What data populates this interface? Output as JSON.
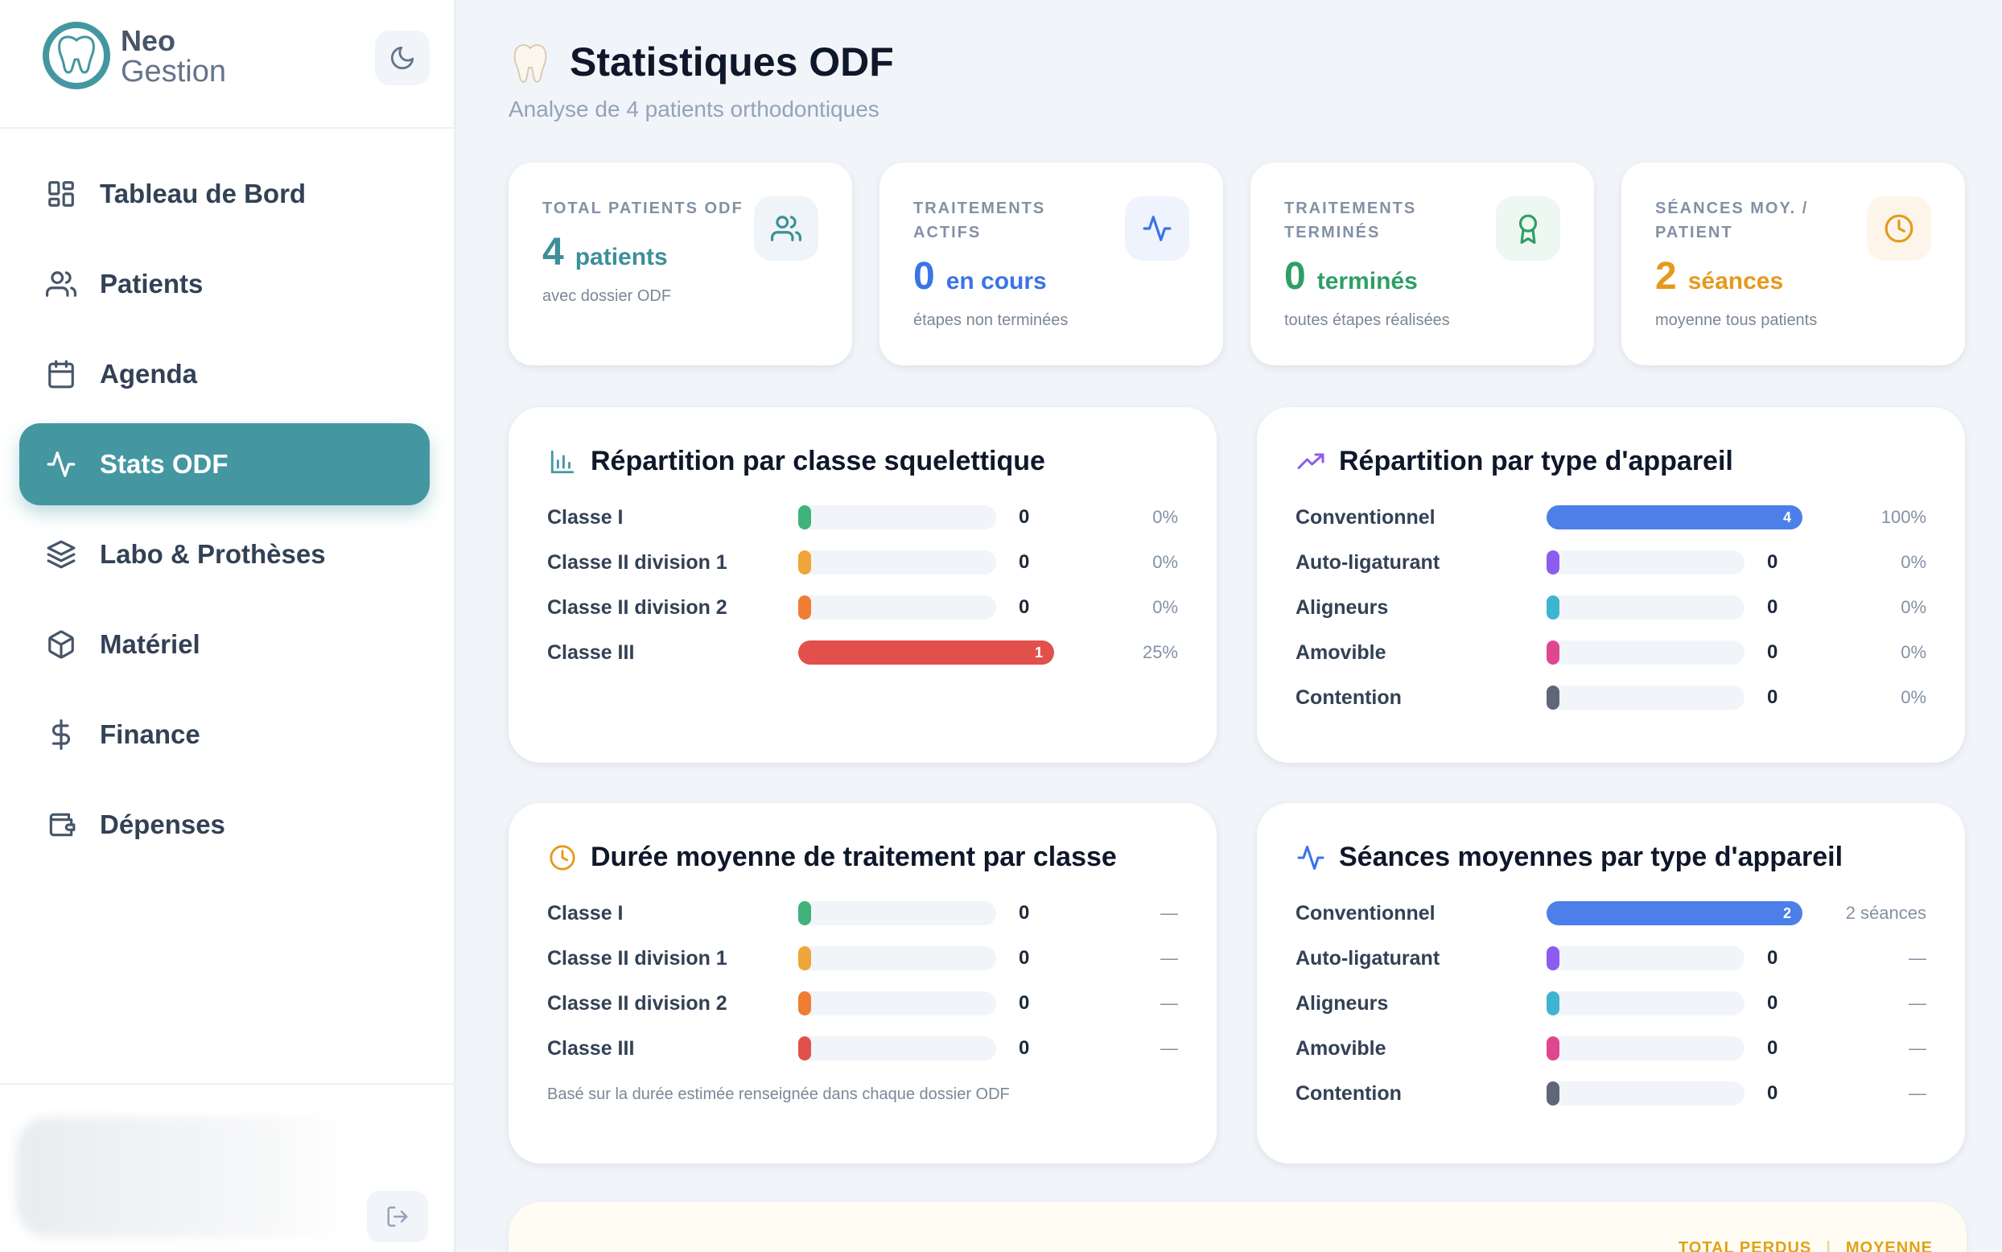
{
  "brand": {
    "name_top": "Neo",
    "name_bottom": "Gestion"
  },
  "sidebar": {
    "items": [
      {
        "label": "Tableau de Bord",
        "icon": "dashboard-icon",
        "active": false
      },
      {
        "label": "Patients",
        "icon": "users-icon",
        "active": false
      },
      {
        "label": "Agenda",
        "icon": "calendar-icon",
        "active": false
      },
      {
        "label": "Stats ODF",
        "icon": "activity-icon",
        "active": true
      },
      {
        "label": "Labo & Prothèses",
        "icon": "layers-icon",
        "active": false
      },
      {
        "label": "Matériel",
        "icon": "package-icon",
        "active": false
      },
      {
        "label": "Finance",
        "icon": "dollar-icon",
        "active": false
      },
      {
        "label": "Dépenses",
        "icon": "wallet-icon",
        "active": false
      }
    ]
  },
  "header": {
    "title": "Statistiques ODF",
    "subtitle": "Analyse de 4 patients orthodontiques"
  },
  "kpis": [
    {
      "label": "TOTAL PATIENTS ODF",
      "value": "4",
      "unit": "patients",
      "note": "avec dossier ODF",
      "color": "#3d8f99",
      "icon_bg": "#eef4f7",
      "icon": "users-icon"
    },
    {
      "label": "TRAITEMENTS ACTIFS",
      "value": "0",
      "unit": "en cours",
      "note": "étapes non terminées",
      "color": "#3b73e8",
      "icon_bg": "#eef3fe",
      "icon": "activity-icon"
    },
    {
      "label": "TRAITEMENTS TERMINÉS",
      "value": "0",
      "unit": "terminés",
      "note": "toutes étapes réalisées",
      "color": "#2f9e66",
      "icon_bg": "#ecf8f1",
      "icon": "award-icon"
    },
    {
      "label": "SÉANCES MOY. / PATIENT",
      "value": "2",
      "unit": "séances",
      "note": "moyenne tous patients",
      "color": "#e59a1c",
      "icon_bg": "#fdf5e9",
      "icon": "clock-icon"
    }
  ],
  "panels": {
    "skeletal": {
      "title": "Répartition par classe squelettique",
      "rows": [
        {
          "label": "Classe I",
          "count": "0",
          "pct": "0%",
          "fraction": 0,
          "color": "#3fb37a",
          "bar_label": ""
        },
        {
          "label": "Classe II division 1",
          "count": "0",
          "pct": "0%",
          "fraction": 0,
          "color": "#f0a53a",
          "bar_label": ""
        },
        {
          "label": "Classe II division 2",
          "count": "0",
          "pct": "0%",
          "fraction": 0,
          "color": "#ef7d32",
          "bar_label": ""
        },
        {
          "label": "Classe III",
          "count": "",
          "pct": "25%",
          "fraction": 1,
          "color": "#e2504b",
          "bar_label": "1"
        }
      ]
    },
    "appliance": {
      "title": "Répartition par type d'appareil",
      "rows": [
        {
          "label": "Conventionnel",
          "count": "",
          "pct": "100%",
          "fraction": 1,
          "color": "#4c7fe9",
          "bar_label": "4"
        },
        {
          "label": "Auto-ligaturant",
          "count": "0",
          "pct": "0%",
          "fraction": 0,
          "color": "#8a5cf0",
          "bar_label": ""
        },
        {
          "label": "Aligneurs",
          "count": "0",
          "pct": "0%",
          "fraction": 0,
          "color": "#3db5d0",
          "bar_label": ""
        },
        {
          "label": "Amovible",
          "count": "0",
          "pct": "0%",
          "fraction": 0,
          "color": "#e0468f",
          "bar_label": ""
        },
        {
          "label": "Contention",
          "count": "0",
          "pct": "0%",
          "fraction": 0,
          "color": "#5d6778",
          "bar_label": ""
        }
      ]
    },
    "duration": {
      "title": "Durée moyenne de traitement par classe",
      "note": "Basé sur la durée estimée renseignée dans chaque dossier ODF",
      "rows": [
        {
          "label": "Classe I",
          "count": "0",
          "pct": "—",
          "fraction": 0,
          "color": "#3fb37a",
          "bar_label": ""
        },
        {
          "label": "Classe II division 1",
          "count": "0",
          "pct": "—",
          "fraction": 0,
          "color": "#f0a53a",
          "bar_label": ""
        },
        {
          "label": "Classe II division 2",
          "count": "0",
          "pct": "—",
          "fraction": 0,
          "color": "#ef7d32",
          "bar_label": ""
        },
        {
          "label": "Classe III",
          "count": "0",
          "pct": "—",
          "fraction": 0,
          "color": "#e2504b",
          "bar_label": ""
        }
      ]
    },
    "sessions": {
      "title": "Séances moyennes par type d'appareil",
      "rows": [
        {
          "label": "Conventionnel",
          "count": "",
          "pct": "2 séances",
          "fraction": 1,
          "color": "#4c7fe9",
          "bar_label": "2"
        },
        {
          "label": "Auto-ligaturant",
          "count": "0",
          "pct": "—",
          "fraction": 0,
          "color": "#8a5cf0",
          "bar_label": ""
        },
        {
          "label": "Aligneurs",
          "count": "0",
          "pct": "—",
          "fraction": 0,
          "color": "#3db5d0",
          "bar_label": ""
        },
        {
          "label": "Amovible",
          "count": "0",
          "pct": "—",
          "fraction": 0,
          "color": "#e0468f",
          "bar_label": ""
        },
        {
          "label": "Contention",
          "count": "0",
          "pct": "—",
          "fraction": 0,
          "color": "#5d6778",
          "bar_label": ""
        }
      ]
    }
  },
  "bottom": {
    "label_total": "TOTAL PERDUS",
    "label_avg": "MOYENNE"
  }
}
